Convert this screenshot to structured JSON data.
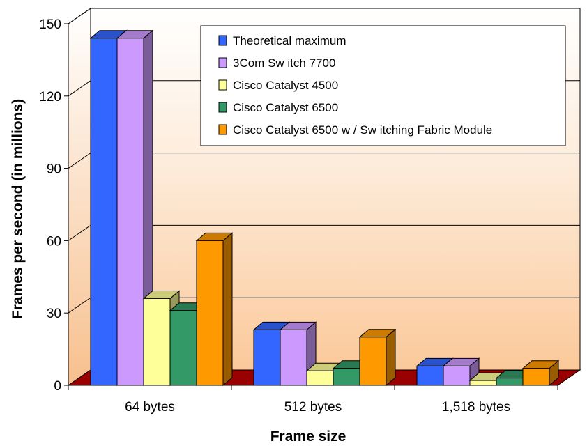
{
  "chart_data": {
    "type": "bar",
    "title": "",
    "xlabel": "Frame size",
    "ylabel": "Frames per second (in millions)",
    "categories": [
      "64 bytes",
      "512 bytes",
      "1,518 bytes"
    ],
    "ylim": [
      0,
      150
    ],
    "yticks": [
      "0",
      "30",
      "60",
      "90",
      "120",
      "150"
    ],
    "grid": true,
    "legend_position": "top-right",
    "series": [
      {
        "name": "Theoretical maximum",
        "values": [
          144,
          23,
          8
        ],
        "color": "#3366FF"
      },
      {
        "name": "3Com Sw itch 7700",
        "values": [
          144,
          23,
          8
        ],
        "color": "#CC99FF"
      },
      {
        "name": "Cisco Catalyst 4500",
        "values": [
          36,
          6,
          2
        ],
        "color": "#FFFF99"
      },
      {
        "name": "Cisco Catalyst 6500",
        "values": [
          31,
          7,
          3
        ],
        "color": "#339966"
      },
      {
        "name": "Cisco Catalyst 6500 w / Sw itching Fabric Module",
        "values": [
          60,
          20,
          7
        ],
        "color": "#FF9900"
      }
    ]
  }
}
